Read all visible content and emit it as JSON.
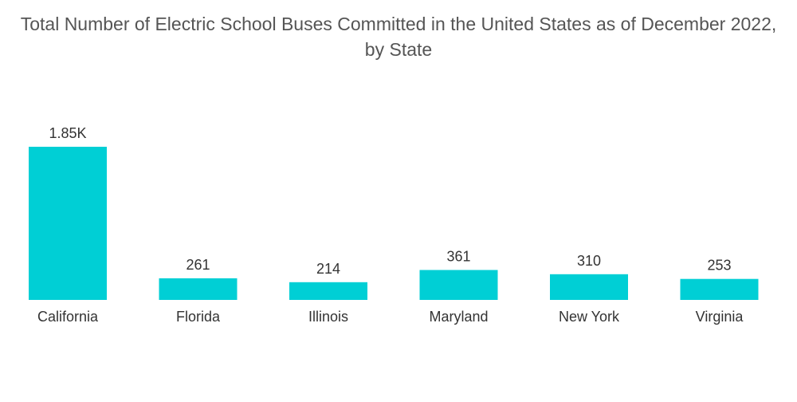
{
  "chart_data": {
    "type": "bar",
    "title_line1": "Total Number of Electric School Buses Committed in the United States as of December 2022,",
    "title_line2": "by State",
    "categories": [
      "California",
      "Florida",
      "Illinois",
      "Maryland",
      "New York",
      "Virginia"
    ],
    "values": [
      1850,
      261,
      214,
      361,
      310,
      253
    ],
    "data_labels": [
      "1.85K",
      "261",
      "214",
      "361",
      "310",
      "253"
    ],
    "xlabel": "",
    "ylabel": "",
    "ylim": [
      0,
      1850
    ],
    "grid": false,
    "legend": "none",
    "colors": {
      "bar": "#00cfd5",
      "text": "#333333",
      "title": "#555555"
    }
  }
}
